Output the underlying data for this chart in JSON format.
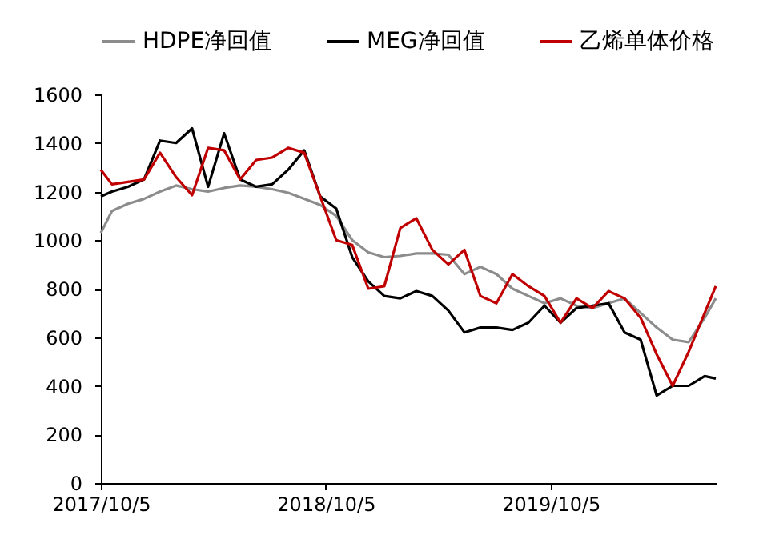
{
  "chart_data": {
    "type": "line",
    "x": [
      "2017-10-05",
      "2017-10-23",
      "2017-11-18",
      "2017-12-14",
      "2018-01-09",
      "2018-02-04",
      "2018-03-02",
      "2018-03-28",
      "2018-04-23",
      "2018-05-19",
      "2018-06-14",
      "2018-07-10",
      "2018-08-05",
      "2018-08-31",
      "2018-09-26",
      "2018-10-22",
      "2018-11-17",
      "2018-12-13",
      "2019-01-08",
      "2019-02-03",
      "2019-03-01",
      "2019-03-27",
      "2019-04-22",
      "2019-05-18",
      "2019-06-13",
      "2019-07-09",
      "2019-08-04",
      "2019-08-30",
      "2019-09-25",
      "2019-10-21",
      "2019-11-16",
      "2019-12-12",
      "2020-01-07",
      "2020-02-02",
      "2020-02-28",
      "2020-03-25",
      "2020-04-20",
      "2020-05-16",
      "2020-06-11",
      "2020-06-29"
    ],
    "series": [
      {
        "name": "HDPE净回值",
        "color": "#8c8c8c",
        "values": [
          1030,
          1120,
          1150,
          1170,
          1200,
          1225,
          1210,
          1200,
          1215,
          1225,
          1220,
          1210,
          1195,
          1170,
          1145,
          1100,
          1000,
          950,
          930,
          935,
          945,
          945,
          940,
          860,
          890,
          860,
          800,
          770,
          740,
          760,
          730,
          720,
          740,
          760,
          700,
          640,
          590,
          580,
          680,
          760
        ]
      },
      {
        "name": "MEG净回值",
        "color": "#000000",
        "values": [
          1180,
          1200,
          1220,
          1250,
          1410,
          1400,
          1460,
          1220,
          1440,
          1250,
          1220,
          1230,
          1290,
          1370,
          1180,
          1130,
          930,
          830,
          770,
          760,
          790,
          770,
          710,
          620,
          640,
          640,
          630,
          660,
          730,
          660,
          720,
          730,
          740,
          620,
          590,
          360,
          400,
          400,
          440,
          430
        ]
      },
      {
        "name": "乙烯单体价格",
        "color": "#c00000",
        "values": [
          1290,
          1230,
          1240,
          1250,
          1360,
          1260,
          1185,
          1380,
          1370,
          1250,
          1330,
          1340,
          1380,
          1360,
          1180,
          1000,
          980,
          800,
          810,
          1050,
          1090,
          960,
          900,
          960,
          770,
          740,
          860,
          810,
          770,
          660,
          760,
          720,
          790,
          760,
          680,
          530,
          400,
          540,
          700,
          810
        ]
      }
    ],
    "xlim": [
      "2017-10-05",
      "2020-06-29"
    ],
    "xticks": [
      {
        "value": "2017-10-05",
        "label": "2017/10/5"
      },
      {
        "value": "2018-10-05",
        "label": "2018/10/5"
      },
      {
        "value": "2019-10-05",
        "label": "2019/10/5"
      }
    ],
    "ylim": [
      0,
      1600
    ],
    "yticks": [
      0,
      200,
      400,
      600,
      800,
      1000,
      1200,
      1400,
      1600
    ],
    "legend": "top"
  }
}
